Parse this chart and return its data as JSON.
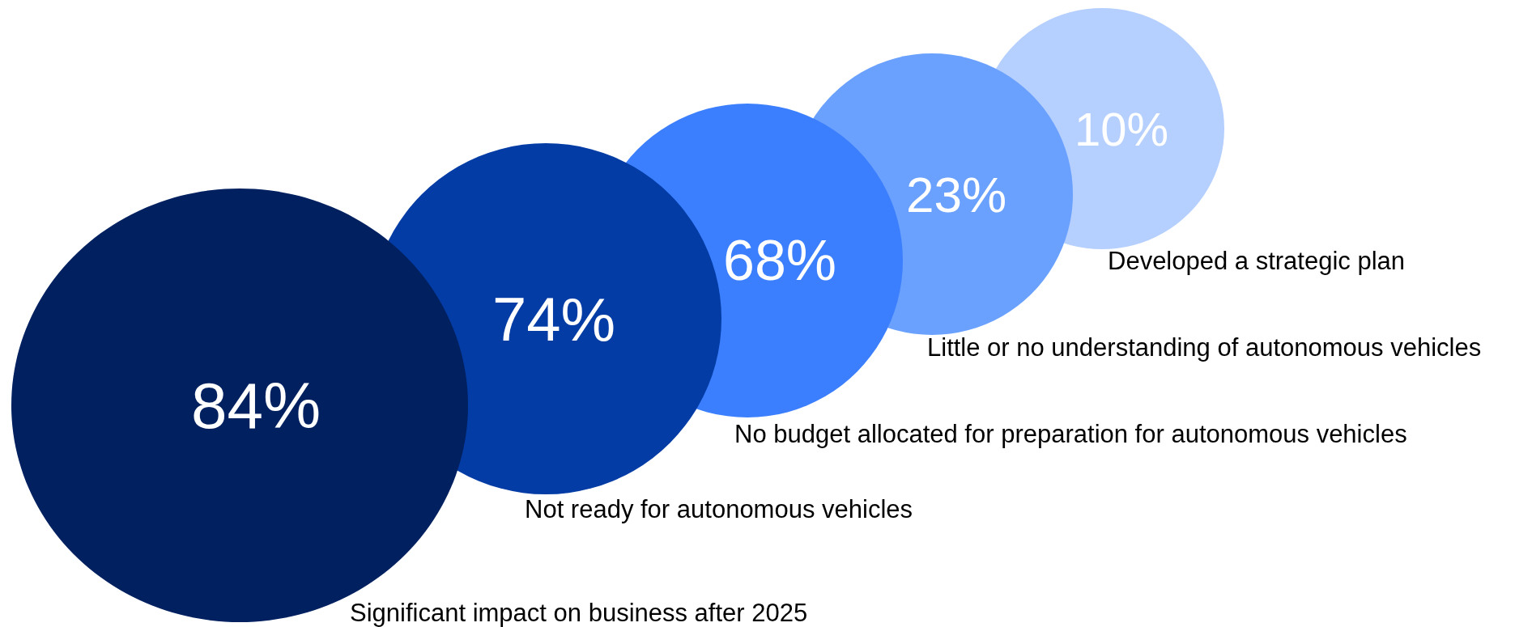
{
  "chart_data": {
    "type": "other",
    "categories": [
      "Significant impact on business after 2025",
      "Not ready for autonomous vehicles",
      "No budget allocated for preparation for autonomous vehicles",
      "Little or no understanding of autonomous vehicles",
      "Developed a strategic plan"
    ],
    "values": [
      84,
      74,
      68,
      23,
      10
    ],
    "value_labels": [
      "84%",
      "74%",
      "68%",
      "23%",
      "10%"
    ],
    "colors": [
      "#012060",
      "#033ca5",
      "#3b7ffe",
      "#6aa1ff",
      "#b5cfff"
    ]
  }
}
